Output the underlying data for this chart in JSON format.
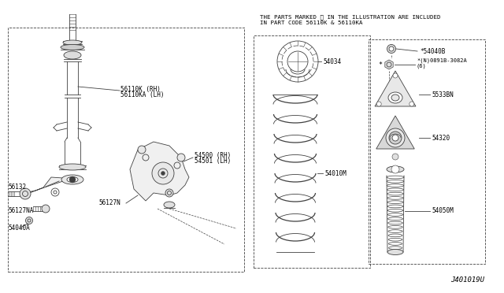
{
  "bg_color": "#ffffff",
  "line_color": "#404040",
  "title_note_line1": "THE PARTS MARKED ※ IN THE ILLUSTRATION ARE INCLUDED",
  "title_note_line2": "IN PART CODE 56110K & 56110KA",
  "diagram_id": "J401019U",
  "labels": {
    "56110K_RH": "56110K (RH)",
    "56110KA_LH": "56110KA (LH)",
    "56132": "56132",
    "56127N": "56127N",
    "56127NA": "56127NA",
    "54040A": "54040A",
    "54500_RH": "54500 (RH)",
    "54501_LH": "54501 (LH)",
    "54034": "54034",
    "54010M": "54010M",
    "54040B": "*54040B",
    "0891B": "*(N)0891B-3082A\n(6)",
    "5533BN": "5533BN",
    "54320": "54320",
    "54050M": "54050M"
  }
}
